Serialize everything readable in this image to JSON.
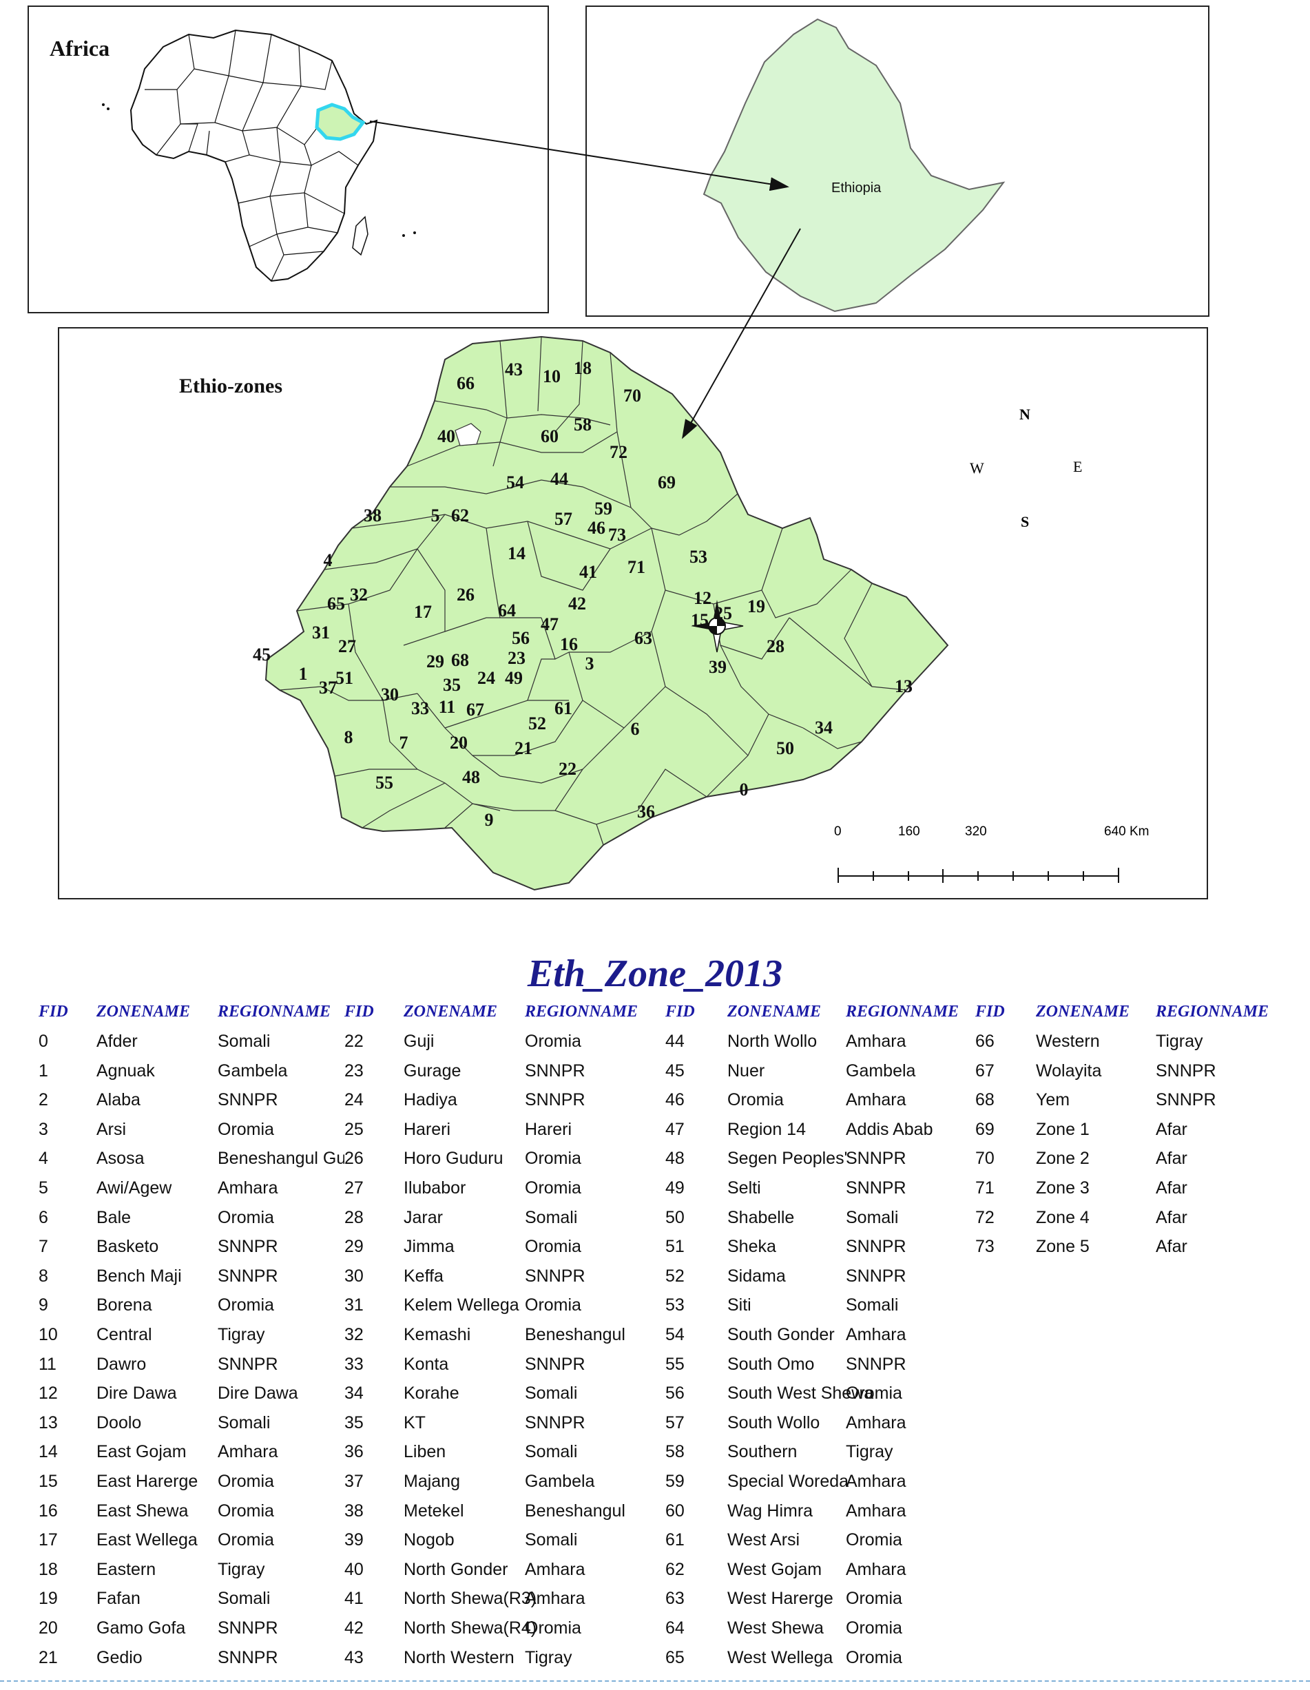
{
  "panels": {
    "africa": {
      "title": "Africa"
    },
    "ethiopia": {
      "label": "Ethiopia"
    },
    "zones": {
      "title": "Ethio-zones"
    }
  },
  "compass": {
    "n": "N",
    "s": "S",
    "e": "E",
    "w": "W"
  },
  "scale_bar": {
    "ticks": [
      "0",
      "160",
      "320",
      "640 Km"
    ]
  },
  "colors": {
    "land": "#cdf3b4",
    "ethiopia_inset": "#d9f5d3",
    "highlight": "#33d6ee",
    "header": "#1a1aa6",
    "title": "#1c1c8c"
  },
  "zone_map_labels": [
    "66",
    "43",
    "10",
    "18",
    "70",
    "58",
    "40",
    "60",
    "72",
    "69",
    "54",
    "44",
    "38",
    "5",
    "62",
    "57",
    "59",
    "46",
    "73",
    "14",
    "71",
    "41",
    "53",
    "4",
    "32",
    "26",
    "65",
    "42",
    "12",
    "19",
    "17",
    "64",
    "15",
    "25",
    "31",
    "47",
    "56",
    "63",
    "27",
    "16",
    "28",
    "45",
    "29",
    "68",
    "23",
    "3",
    "1",
    "51",
    "24",
    "49",
    "37",
    "39",
    "13",
    "35",
    "30",
    "33",
    "11",
    "67",
    "61",
    "52",
    "34",
    "8",
    "7",
    "20",
    "21",
    "6",
    "50",
    "22",
    "55",
    "48",
    "0",
    "36",
    "9"
  ],
  "table": {
    "title": "Eth_Zone_2013",
    "headers": {
      "fid": "FID",
      "zone": "ZONENAME",
      "region": "REGIONNAME"
    },
    "columns": [
      {
        "rows": [
          {
            "fid": "0",
            "zone": "Afder",
            "region": "Somali"
          },
          {
            "fid": "1",
            "zone": "Agnuak",
            "region": "Gambela"
          },
          {
            "fid": "2",
            "zone": "Alaba",
            "region": "SNNPR"
          },
          {
            "fid": "3",
            "zone": "Arsi",
            "region": "Oromia"
          },
          {
            "fid": "4",
            "zone": "Asosa",
            "region": "Beneshangul Gu"
          },
          {
            "fid": "5",
            "zone": "Awi/Agew",
            "region": "Amhara"
          },
          {
            "fid": "6",
            "zone": "Bale",
            "region": "Oromia"
          },
          {
            "fid": "7",
            "zone": "Basketo",
            "region": "SNNPR"
          },
          {
            "fid": "8",
            "zone": "Bench Maji",
            "region": "SNNPR"
          },
          {
            "fid": "9",
            "zone": "Borena",
            "region": "Oromia"
          },
          {
            "fid": "10",
            "zone": "Central",
            "region": "Tigray"
          },
          {
            "fid": "11",
            "zone": "Dawro",
            "region": "SNNPR"
          },
          {
            "fid": "12",
            "zone": "Dire Dawa",
            "region": "Dire Dawa"
          },
          {
            "fid": "13",
            "zone": "Doolo",
            "region": "Somali"
          },
          {
            "fid": "14",
            "zone": "East Gojam",
            "region": "Amhara"
          },
          {
            "fid": "15",
            "zone": "East Harerge",
            "region": "Oromia"
          },
          {
            "fid": "16",
            "zone": "East Shewa",
            "region": "Oromia"
          },
          {
            "fid": "17",
            "zone": "East Wellega",
            "region": "Oromia"
          },
          {
            "fid": "18",
            "zone": "Eastern",
            "region": "Tigray"
          },
          {
            "fid": "19",
            "zone": "Fafan",
            "region": "Somali"
          },
          {
            "fid": "20",
            "zone": "Gamo Gofa",
            "region": "SNNPR"
          },
          {
            "fid": "21",
            "zone": "Gedio",
            "region": "SNNPR"
          }
        ]
      },
      {
        "rows": [
          {
            "fid": "22",
            "zone": "Guji",
            "region": "Oromia"
          },
          {
            "fid": "23",
            "zone": "Gurage",
            "region": "SNNPR"
          },
          {
            "fid": "24",
            "zone": "Hadiya",
            "region": "SNNPR"
          },
          {
            "fid": "25",
            "zone": "Hareri",
            "region": "Hareri"
          },
          {
            "fid": "26",
            "zone": "Horo Guduru",
            "region": "Oromia"
          },
          {
            "fid": "27",
            "zone": "Ilubabor",
            "region": "Oromia"
          },
          {
            "fid": "28",
            "zone": "Jarar",
            "region": "Somali"
          },
          {
            "fid": "29",
            "zone": "Jimma",
            "region": "Oromia"
          },
          {
            "fid": "30",
            "zone": "Keffa",
            "region": "SNNPR"
          },
          {
            "fid": "31",
            "zone": "Kelem Wellega",
            "region": "Oromia"
          },
          {
            "fid": "32",
            "zone": "Kemashi",
            "region": "Beneshangul"
          },
          {
            "fid": "33",
            "zone": "Konta",
            "region": "SNNPR"
          },
          {
            "fid": "34",
            "zone": "Korahe",
            "region": "Somali"
          },
          {
            "fid": "35",
            "zone": "KT",
            "region": "SNNPR"
          },
          {
            "fid": "36",
            "zone": "Liben",
            "region": "Somali"
          },
          {
            "fid": "37",
            "zone": "Majang",
            "region": "Gambela"
          },
          {
            "fid": "38",
            "zone": "Metekel",
            "region": "Beneshangul"
          },
          {
            "fid": "39",
            "zone": "Nogob",
            "region": "Somali"
          },
          {
            "fid": "40",
            "zone": "North Gonder",
            "region": "Amhara"
          },
          {
            "fid": "41",
            "zone": "North Shewa(R3)",
            "region": "Amhara"
          },
          {
            "fid": "42",
            "zone": "North Shewa(R4)",
            "region": "Oromia"
          },
          {
            "fid": "43",
            "zone": "North Western",
            "region": "Tigray"
          }
        ]
      },
      {
        "rows": [
          {
            "fid": "44",
            "zone": "North Wollo",
            "region": "Amhara"
          },
          {
            "fid": "45",
            "zone": "Nuer",
            "region": "Gambela"
          },
          {
            "fid": "46",
            "zone": "Oromia",
            "region": "Amhara"
          },
          {
            "fid": "47",
            "zone": "Region 14",
            "region": "Addis Abab"
          },
          {
            "fid": "48",
            "zone": "Segen Peoples'",
            "region": "SNNPR"
          },
          {
            "fid": "49",
            "zone": "Selti",
            "region": "SNNPR"
          },
          {
            "fid": "50",
            "zone": "Shabelle",
            "region": "Somali"
          },
          {
            "fid": "51",
            "zone": "Sheka",
            "region": "SNNPR"
          },
          {
            "fid": "52",
            "zone": "Sidama",
            "region": "SNNPR"
          },
          {
            "fid": "53",
            "zone": "Siti",
            "region": "Somali"
          },
          {
            "fid": "54",
            "zone": "South Gonder",
            "region": "Amhara"
          },
          {
            "fid": "55",
            "zone": "South Omo",
            "region": "SNNPR"
          },
          {
            "fid": "56",
            "zone": "South West Shewa",
            "region": "Oromia"
          },
          {
            "fid": "57",
            "zone": "South Wollo",
            "region": "Amhara"
          },
          {
            "fid": "58",
            "zone": "Southern",
            "region": "Tigray"
          },
          {
            "fid": "59",
            "zone": "Special Woreda",
            "region": "Amhara"
          },
          {
            "fid": "60",
            "zone": "Wag Himra",
            "region": "Amhara"
          },
          {
            "fid": "61",
            "zone": "West Arsi",
            "region": "Oromia"
          },
          {
            "fid": "62",
            "zone": "West Gojam",
            "region": "Amhara"
          },
          {
            "fid": "63",
            "zone": "West Harerge",
            "region": "Oromia"
          },
          {
            "fid": "64",
            "zone": "West Shewa",
            "region": "Oromia"
          },
          {
            "fid": "65",
            "zone": "West Wellega",
            "region": "Oromia"
          }
        ]
      },
      {
        "rows": [
          {
            "fid": "66",
            "zone": "Western",
            "region": "Tigray"
          },
          {
            "fid": "67",
            "zone": "Wolayita",
            "region": "SNNPR"
          },
          {
            "fid": "68",
            "zone": "Yem",
            "region": "SNNPR"
          },
          {
            "fid": "69",
            "zone": "Zone 1",
            "region": "Afar"
          },
          {
            "fid": "70",
            "zone": "Zone 2",
            "region": "Afar"
          },
          {
            "fid": "71",
            "zone": "Zone 3",
            "region": "Afar"
          },
          {
            "fid": "72",
            "zone": "Zone 4",
            "region": "Afar"
          },
          {
            "fid": "73",
            "zone": "Zone 5",
            "region": "Afar"
          }
        ]
      }
    ]
  }
}
